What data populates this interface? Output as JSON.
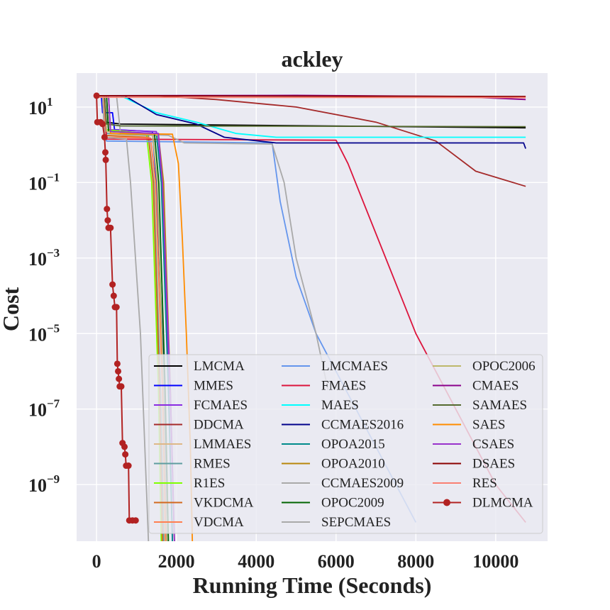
{
  "chart_data": {
    "type": "line",
    "title": "ackley",
    "xlabel": "Running Time (Seconds)",
    "ylabel": "Cost",
    "yscale": "log",
    "xlim": [
      -500,
      11300
    ],
    "ylim_log10": [
      -10.5,
      1.9
    ],
    "x_ticks": [
      {
        "value": 0,
        "label": "0"
      },
      {
        "value": 2000,
        "label": "2000"
      },
      {
        "value": 4000,
        "label": "4000"
      },
      {
        "value": 6000,
        "label": "6000"
      },
      {
        "value": 8000,
        "label": "8000"
      },
      {
        "value": 10000,
        "label": "10000"
      }
    ],
    "y_ticks": [
      {
        "exp": 1,
        "base": "10",
        "sup": "1"
      },
      {
        "exp": -1,
        "base": "10",
        "sup": "−1"
      },
      {
        "exp": -3,
        "base": "10",
        "sup": "−3"
      },
      {
        "exp": -5,
        "base": "10",
        "sup": "−5"
      },
      {
        "exp": -7,
        "base": "10",
        "sup": "−7"
      },
      {
        "exp": -9,
        "base": "10",
        "sup": "−9"
      }
    ],
    "grid": true,
    "legend_position": "lower-right",
    "legend_columns": 3,
    "series": [
      {
        "name": "LMCMA",
        "color": "#000000",
        "points": [
          [
            0,
            1.3
          ],
          [
            180,
            1.3
          ],
          [
            220,
            0.6
          ],
          [
            600,
            0.55
          ],
          [
            10750,
            0.45
          ]
        ]
      },
      {
        "name": "MMES",
        "color": "#0000ff",
        "points": [
          [
            0,
            1.3
          ],
          [
            120,
            1.3
          ],
          [
            150,
            0.85
          ],
          [
            400,
            0.85
          ],
          [
            450,
            0.4
          ],
          [
            1400,
            0.35
          ],
          [
            1500,
            -1.0
          ],
          [
            1700,
            -6.5
          ],
          [
            1760,
            -10.5
          ]
        ]
      },
      {
        "name": "FCMAES",
        "color": "#8a2be2",
        "points": [
          [
            0,
            1.3
          ],
          [
            250,
            1.3
          ],
          [
            300,
            0.4
          ],
          [
            1500,
            0.35
          ],
          [
            1650,
            -1.0
          ],
          [
            1800,
            -6.0
          ],
          [
            1900,
            -10.5
          ]
        ]
      },
      {
        "name": "DDCMA",
        "color": "#a52a2a",
        "points": [
          [
            0,
            1.3
          ],
          [
            1500,
            1.3
          ],
          [
            3000,
            1.2
          ],
          [
            5000,
            1.0
          ],
          [
            7000,
            0.6
          ],
          [
            8500,
            0.1
          ],
          [
            9500,
            -0.7
          ],
          [
            10750,
            -1.1
          ]
        ]
      },
      {
        "name": "LMMAES",
        "color": "#deb887",
        "points": [
          [
            0,
            1.3
          ],
          [
            200,
            1.3
          ],
          [
            250,
            0.2
          ],
          [
            1300,
            0.2
          ],
          [
            1450,
            -1.0
          ],
          [
            1600,
            -6.5
          ],
          [
            1700,
            -10.5
          ]
        ]
      },
      {
        "name": "RMES",
        "color": "#5f9ea0",
        "points": [
          [
            0,
            1.3
          ],
          [
            200,
            1.3
          ],
          [
            250,
            0.3
          ],
          [
            1300,
            0.25
          ],
          [
            1430,
            -1.0
          ],
          [
            1600,
            -6.5
          ],
          [
            1680,
            -10.5
          ]
        ]
      },
      {
        "name": "R1ES",
        "color": "#7fff00",
        "points": [
          [
            0,
            1.3
          ],
          [
            150,
            1.3
          ],
          [
            200,
            0.4
          ],
          [
            1250,
            0.3
          ],
          [
            1380,
            -1.0
          ],
          [
            1550,
            -6.5
          ],
          [
            1620,
            -10.5
          ]
        ]
      },
      {
        "name": "VKDCMA",
        "color": "#d2691e",
        "points": [
          [
            0,
            1.3
          ],
          [
            150,
            1.3
          ],
          [
            200,
            0.25
          ],
          [
            1300,
            0.2
          ],
          [
            1420,
            -1.0
          ],
          [
            1580,
            -6.5
          ],
          [
            1650,
            -10.5
          ]
        ]
      },
      {
        "name": "VDCMA",
        "color": "#ff7f50",
        "points": [
          [
            0,
            1.3
          ],
          [
            180,
            1.3
          ],
          [
            230,
            0.2
          ],
          [
            1350,
            0.18
          ],
          [
            1480,
            -1.0
          ],
          [
            1650,
            -6.5
          ],
          [
            1730,
            -10.5
          ]
        ]
      },
      {
        "name": "LMCMAES",
        "color": "#6495ed",
        "points": [
          [
            0,
            1.3
          ],
          [
            200,
            1.3
          ],
          [
            250,
            0.1
          ],
          [
            4400,
            0.05
          ],
          [
            4600,
            -1.5
          ],
          [
            5000,
            -3.5
          ],
          [
            5500,
            -5.0
          ],
          [
            6500,
            -7.0
          ],
          [
            8000,
            -10.0
          ]
        ]
      },
      {
        "name": "FMAES",
        "color": "#dc143c",
        "points": [
          [
            0,
            1.3
          ],
          [
            200,
            1.3
          ],
          [
            250,
            0.15
          ],
          [
            6000,
            0.12
          ],
          [
            6300,
            -0.5
          ],
          [
            8000,
            -5.0
          ],
          [
            10000,
            -9.0
          ],
          [
            10750,
            -10.0
          ]
        ]
      },
      {
        "name": "MAES",
        "color": "#00ffff",
        "points": [
          [
            0,
            1.3
          ],
          [
            600,
            1.3
          ],
          [
            1500,
            0.85
          ],
          [
            2500,
            0.6
          ],
          [
            3500,
            0.3
          ],
          [
            4500,
            0.2
          ],
          [
            10750,
            0.2
          ]
        ]
      },
      {
        "name": "CCMAES2016",
        "color": "#00008b",
        "points": [
          [
            0,
            1.3
          ],
          [
            700,
            1.3
          ],
          [
            1500,
            0.8
          ],
          [
            2500,
            0.55
          ],
          [
            3200,
            0.2
          ],
          [
            4500,
            0.05
          ],
          [
            10700,
            0.05
          ],
          [
            10750,
            -0.1
          ]
        ]
      },
      {
        "name": "OPOA2015",
        "color": "#008b8b",
        "points": [
          [
            0,
            1.3
          ],
          [
            300,
            1.3
          ],
          [
            350,
            0.35
          ],
          [
            1500,
            0.3
          ],
          [
            1620,
            -1.0
          ],
          [
            1800,
            -6.5
          ],
          [
            1900,
            -10.5
          ]
        ]
      },
      {
        "name": "OPOA2010",
        "color": "#b8860b",
        "points": [
          [
            0,
            1.3
          ],
          [
            300,
            1.3
          ],
          [
            350,
            0.3
          ],
          [
            1550,
            0.25
          ],
          [
            1680,
            -1.0
          ],
          [
            1850,
            -6.5
          ],
          [
            1950,
            -10.5
          ]
        ]
      },
      {
        "name": "CCMAES2009",
        "color": "#a9a9a9",
        "points": [
          [
            0,
            1.3
          ],
          [
            500,
            1.3
          ],
          [
            600,
            0.3
          ],
          [
            1800,
            0.25
          ],
          [
            2200,
            0.05
          ],
          [
            4400,
            0.02
          ],
          [
            4700,
            -1.0
          ],
          [
            5000,
            -3.0
          ],
          [
            5500,
            -5.0
          ],
          [
            5800,
            -6.5
          ]
        ]
      },
      {
        "name": "OPOC2009",
        "color": "#006400",
        "points": [
          [
            0,
            1.3
          ],
          [
            250,
            1.3
          ],
          [
            300,
            0.35
          ],
          [
            1450,
            0.3
          ],
          [
            1560,
            -1.0
          ],
          [
            1720,
            -6.5
          ],
          [
            1800,
            -10.5
          ]
        ]
      },
      {
        "name": "SEPCMAES",
        "color": "#a9a9a9",
        "points": [
          [
            0,
            1.3
          ],
          [
            150,
            1.3
          ],
          [
            200,
            0.2
          ],
          [
            750,
            0.15
          ],
          [
            850,
            -1.0
          ],
          [
            1100,
            -5.0
          ],
          [
            1300,
            -10.5
          ]
        ]
      },
      {
        "name": "OPOC2006",
        "color": "#bdb76b",
        "points": [
          [
            0,
            1.28
          ],
          [
            200,
            1.28
          ],
          [
            250,
            0.35
          ],
          [
            1400,
            0.3
          ],
          [
            1520,
            -1.0
          ],
          [
            1680,
            -6.5
          ],
          [
            1760,
            -10.5
          ]
        ]
      },
      {
        "name": "CMAES",
        "color": "#8b008b",
        "points": [
          [
            0,
            1.3
          ],
          [
            5000,
            1.31
          ],
          [
            9000,
            1.28
          ],
          [
            10750,
            1.2
          ]
        ]
      },
      {
        "name": "SAMAES",
        "color": "#556b2f",
        "points": [
          [
            0,
            1.3
          ],
          [
            200,
            1.3
          ],
          [
            250,
            0.55
          ],
          [
            600,
            0.5
          ],
          [
            10750,
            0.48
          ]
        ]
      },
      {
        "name": "SAES",
        "color": "#ff8c00",
        "points": [
          [
            0,
            1.3
          ],
          [
            300,
            1.3
          ],
          [
            350,
            0.3
          ],
          [
            1900,
            0.28
          ],
          [
            2050,
            -0.5
          ],
          [
            2150,
            -2.5
          ],
          [
            2250,
            -5.0
          ],
          [
            2350,
            -8.0
          ],
          [
            2400,
            -10.5
          ]
        ]
      },
      {
        "name": "CSAES",
        "color": "#9932cc",
        "points": [
          [
            0,
            1.3
          ],
          [
            300,
            1.3
          ],
          [
            350,
            0.35
          ],
          [
            1550,
            0.3
          ],
          [
            1650,
            -1.0
          ],
          [
            1850,
            -6.5
          ],
          [
            1950,
            -10.5
          ]
        ]
      },
      {
        "name": "DSAES",
        "color": "#8b0000",
        "points": [
          [
            0,
            1.3
          ],
          [
            10750,
            1.28
          ]
        ]
      },
      {
        "name": "RES",
        "color": "#fa8072",
        "points": [
          [
            0,
            1.26
          ],
          [
            10750,
            1.25
          ]
        ]
      },
      {
        "name": "DLMCMA",
        "color": "#b22222",
        "marker": "circle",
        "points": [
          [
            0,
            1.3
          ],
          [
            20,
            0.6
          ],
          [
            100,
            0.6
          ],
          [
            150,
            0.55
          ],
          [
            200,
            0.2
          ],
          [
            220,
            -0.2
          ],
          [
            230,
            -0.4
          ],
          [
            260,
            -1.7
          ],
          [
            280,
            -2.0
          ],
          [
            300,
            -2.2
          ],
          [
            350,
            -2.2
          ],
          [
            400,
            -3.7
          ],
          [
            430,
            -4.0
          ],
          [
            460,
            -4.3
          ],
          [
            500,
            -4.3
          ],
          [
            520,
            -5.8
          ],
          [
            540,
            -6.0
          ],
          [
            560,
            -6.2
          ],
          [
            580,
            -6.4
          ],
          [
            620,
            -6.4
          ],
          [
            650,
            -7.9
          ],
          [
            700,
            -8.0
          ],
          [
            720,
            -8.2
          ],
          [
            740,
            -8.5
          ],
          [
            800,
            -8.5
          ],
          [
            820,
            -9.95
          ],
          [
            900,
            -9.95
          ],
          [
            980,
            -9.95
          ]
        ]
      }
    ]
  }
}
